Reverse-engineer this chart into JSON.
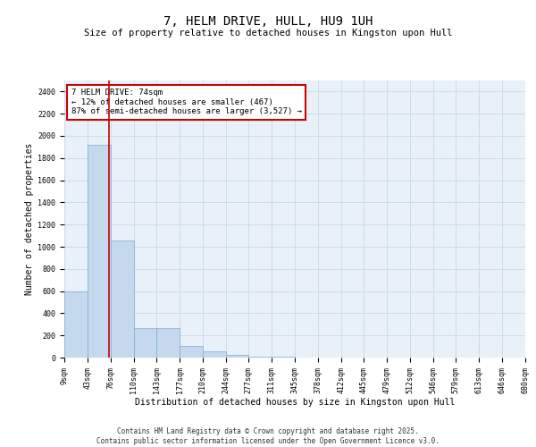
{
  "title": "7, HELM DRIVE, HULL, HU9 1UH",
  "subtitle": "Size of property relative to detached houses in Kingston upon Hull",
  "xlabel": "Distribution of detached houses by size in Kingston upon Hull",
  "ylabel": "Number of detached properties",
  "footer_line1": "Contains HM Land Registry data © Crown copyright and database right 2025.",
  "footer_line2": "Contains public sector information licensed under the Open Government Licence v3.0.",
  "annotation_title": "7 HELM DRIVE: 74sqm",
  "annotation_line2": "← 12% of detached houses are smaller (467)",
  "annotation_line3": "87% of semi-detached houses are larger (3,527) →",
  "property_size": 74,
  "bar_left_edges": [
    9,
    43,
    76,
    110,
    143,
    177,
    210,
    244,
    277,
    311,
    345,
    378,
    412,
    445,
    479,
    512,
    546,
    579,
    613,
    646
  ],
  "bar_widths": [
    34,
    33,
    34,
    33,
    34,
    33,
    34,
    33,
    34,
    34,
    33,
    34,
    33,
    34,
    33,
    34,
    33,
    34,
    33,
    34
  ],
  "bar_heights": [
    600,
    1920,
    1060,
    270,
    270,
    105,
    55,
    25,
    10,
    5,
    3,
    2,
    1,
    1,
    1,
    0,
    0,
    0,
    0,
    0
  ],
  "bar_color": "#c5d8ed",
  "bar_edge_color": "#7aadd4",
  "marker_color": "#cc0000",
  "annotation_box_color": "#cc0000",
  "grid_color": "#c8d8e8",
  "bg_color": "#e8f0f8",
  "ylim": [
    0,
    2500
  ],
  "yticks": [
    0,
    200,
    400,
    600,
    800,
    1000,
    1200,
    1400,
    1600,
    1800,
    2000,
    2200,
    2400
  ],
  "tick_labels": [
    "9sqm",
    "43sqm",
    "76sqm",
    "110sqm",
    "143sqm",
    "177sqm",
    "210sqm",
    "244sqm",
    "277sqm",
    "311sqm",
    "345sqm",
    "378sqm",
    "412sqm",
    "445sqm",
    "479sqm",
    "512sqm",
    "546sqm",
    "579sqm",
    "613sqm",
    "646sqm",
    "680sqm"
  ],
  "title_fontsize": 10,
  "subtitle_fontsize": 7.5,
  "xlabel_fontsize": 7,
  "ylabel_fontsize": 7,
  "tick_fontsize": 6,
  "annotation_fontsize": 6.5,
  "footer_fontsize": 5.5
}
